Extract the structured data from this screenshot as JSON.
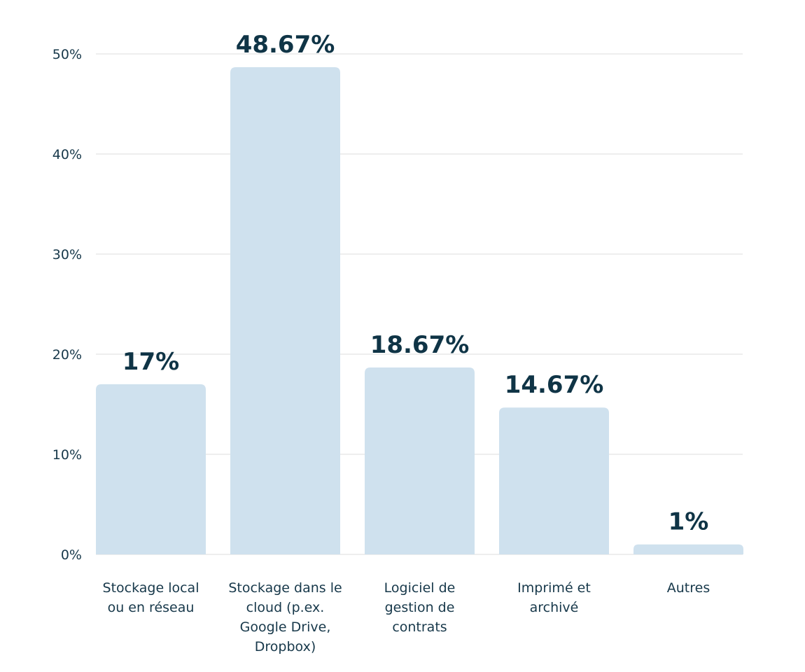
{
  "chart_data": {
    "type": "bar",
    "categories": [
      [
        "Stockage local",
        "ou en réseau"
      ],
      [
        "Stockage dans le",
        "cloud (p.ex.",
        "Google Drive,",
        "Dropbox)"
      ],
      [
        "Logiciel de",
        "gestion de",
        "contrats"
      ],
      [
        "Imprimé et",
        "archivé"
      ],
      [
        "Autres"
      ]
    ],
    "values": [
      17,
      48.67,
      18.67,
      14.67,
      1
    ],
    "data_labels": [
      "17%",
      "48.67%",
      "18.67%",
      "14.67%",
      "1%"
    ],
    "ylim": [
      0,
      50
    ],
    "yticks": [
      {
        "value": 0,
        "label": "0%"
      },
      {
        "value": 10,
        "label": "10%"
      },
      {
        "value": 20,
        "label": "20%"
      },
      {
        "value": 30,
        "label": "30%"
      },
      {
        "value": 40,
        "label": "40%"
      },
      {
        "value": 50,
        "label": "50%"
      }
    ],
    "title": "",
    "xlabel": "",
    "ylabel": "",
    "grid": true,
    "colors": {
      "bar": "#cfe1ee",
      "grid": "#dcdcdc",
      "text": "#17384a",
      "data_label": "#0f3446"
    }
  }
}
